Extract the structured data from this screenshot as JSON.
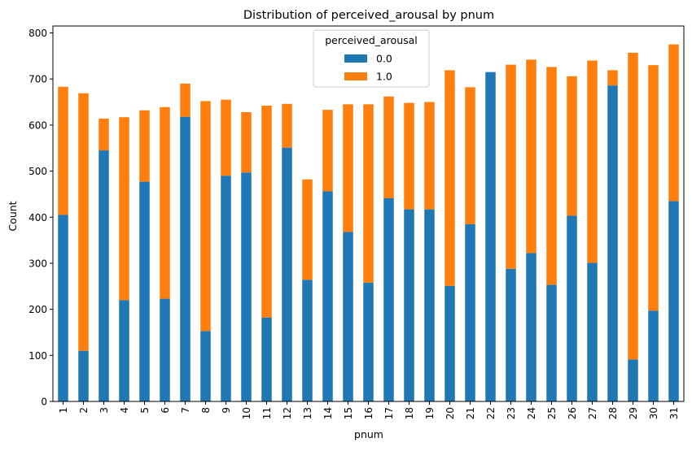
{
  "chart_data": {
    "type": "bar",
    "stacked": true,
    "title": "Distribution of perceived_arousal by pnum",
    "xlabel": "pnum",
    "ylabel": "Count",
    "ylim": [
      0,
      815
    ],
    "yticks": [
      0,
      100,
      200,
      300,
      400,
      500,
      600,
      700,
      800
    ],
    "grid": false,
    "legend": {
      "title": "perceived_arousal",
      "position": "top-center"
    },
    "categories": [
      "1",
      "2",
      "3",
      "4",
      "5",
      "6",
      "7",
      "8",
      "9",
      "10",
      "11",
      "12",
      "13",
      "14",
      "15",
      "16",
      "17",
      "18",
      "19",
      "20",
      "21",
      "22",
      "23",
      "24",
      "25",
      "26",
      "27",
      "28",
      "29",
      "30",
      "31"
    ],
    "series": [
      {
        "name": "0.0",
        "color": "#1f77b4",
        "values": [
          405,
          110,
          545,
          220,
          477,
          223,
          618,
          153,
          490,
          497,
          182,
          551,
          264,
          456,
          368,
          258,
          441,
          417,
          417,
          251,
          385,
          715,
          288,
          322,
          253,
          403,
          301,
          686,
          91,
          197,
          435
        ]
      },
      {
        "name": "1.0",
        "color": "#ff7f0e",
        "values": [
          278,
          559,
          69,
          397,
          155,
          416,
          72,
          499,
          165,
          131,
          460,
          95,
          218,
          177,
          277,
          387,
          221,
          231,
          233,
          468,
          297,
          0,
          443,
          420,
          473,
          303,
          439,
          33,
          666,
          533,
          340
        ]
      }
    ]
  }
}
